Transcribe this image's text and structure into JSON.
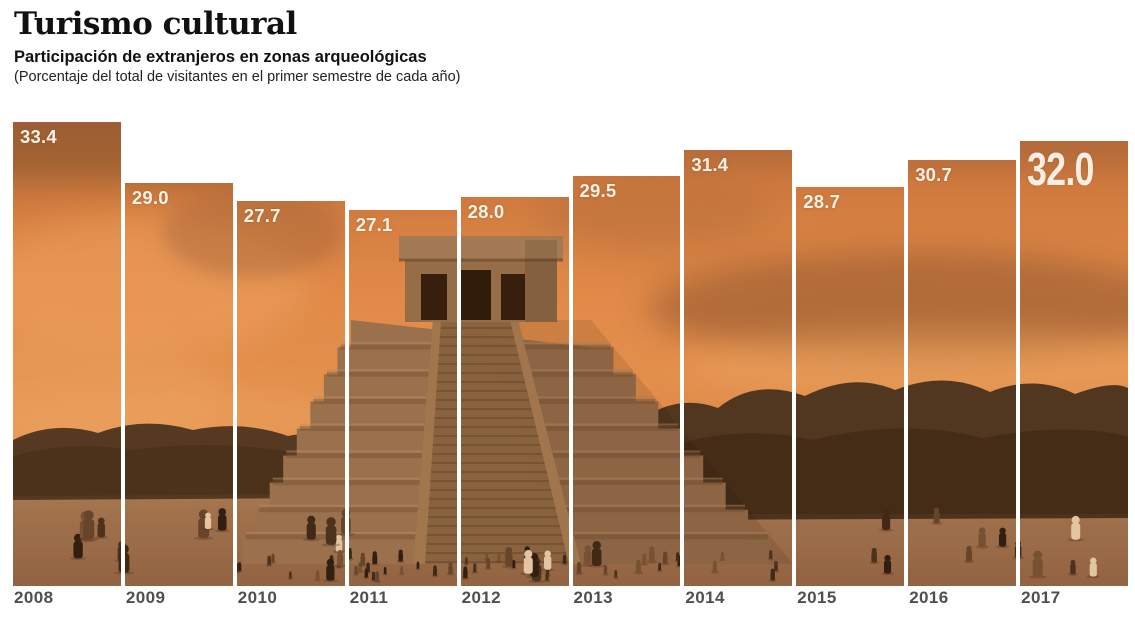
{
  "header": {
    "title": "Turismo cultural",
    "subtitle": "Participación de extranjeros en zonas arqueológicas",
    "note": "(Porcentaje del total de visitantes en el primer semestre de cada año)"
  },
  "chart_data": {
    "type": "bar",
    "title": "Turismo cultural",
    "subtitle": "Participación de extranjeros en zonas arqueológicas",
    "note": "(Porcentaje del total de visitantes en el primer semestre de cada año)",
    "categories": [
      "2008",
      "2009",
      "2010",
      "2011",
      "2012",
      "2013",
      "2014",
      "2015",
      "2016",
      "2017"
    ],
    "values": [
      33.4,
      29.0,
      27.7,
      27.1,
      28.0,
      29.5,
      31.4,
      28.7,
      30.7,
      32.0
    ],
    "value_labels": [
      "33.4",
      "29.0",
      "27.7",
      "27.1",
      "28.0",
      "29.5",
      "31.4",
      "28.7",
      "30.7",
      "32.0"
    ],
    "xlabel": "",
    "ylabel": "",
    "ylim": [
      0,
      33.4
    ],
    "grid": false,
    "legend": "none",
    "highlight_last_value": true,
    "bar_fill_style": "continuous sepia/orange-toned photograph of the Chichén Itzá pyramid with tourists, cropped into columns",
    "value_label_color": "#ffffff",
    "year_label_color": "#4f4f4f",
    "gap_color": "#ffffff"
  },
  "palette": {
    "sky_orange": "#e18c4b",
    "sky_dark_band": "#8f5a33",
    "cloud_light": "#eda25e",
    "stone": "#937050",
    "stone_shadow": "#6a4e34",
    "trees_dark": "#3c2c1a",
    "ground": "#9a7150",
    "figure_dark": "#2f2115",
    "text_dark": "#111111"
  }
}
